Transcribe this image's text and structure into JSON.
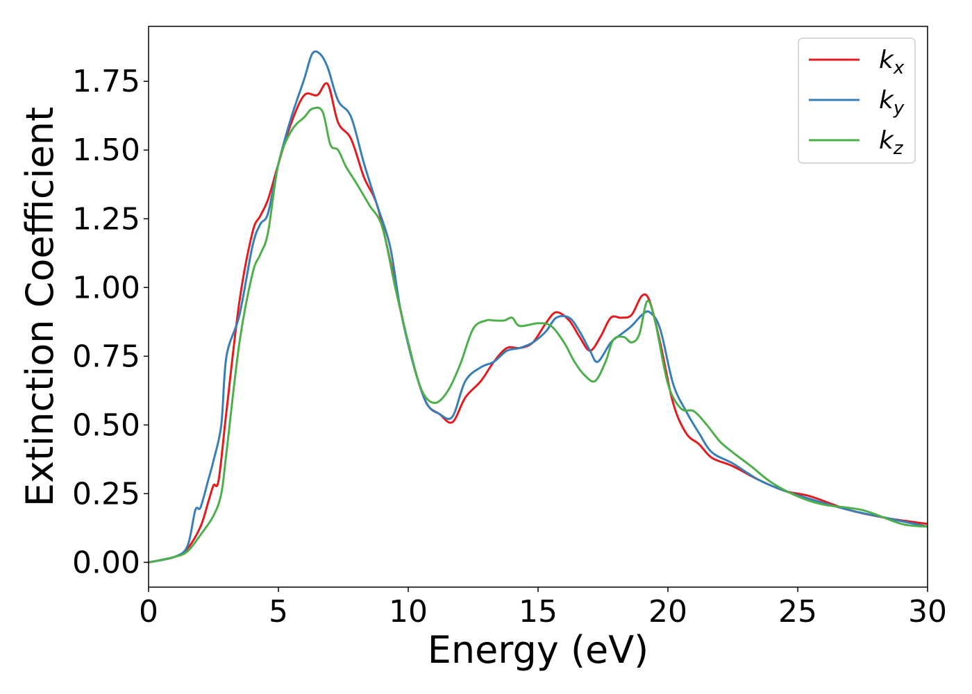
{
  "chart_data": {
    "type": "line",
    "title": "",
    "xlabel": "Energy (eV)",
    "ylabel": "Extinction Coefficient",
    "xlim": [
      0,
      30
    ],
    "ylim": [
      -0.09,
      1.95
    ],
    "xticks": [
      0,
      5,
      10,
      15,
      20,
      25,
      30
    ],
    "xtick_labels": [
      "0",
      "5",
      "10",
      "15",
      "20",
      "25",
      "30"
    ],
    "yticks": [
      0.0,
      0.25,
      0.5,
      0.75,
      1.0,
      1.25,
      1.5,
      1.75
    ],
    "ytick_labels": [
      "0.00",
      "0.25",
      "0.50",
      "0.75",
      "1.00",
      "1.25",
      "1.50",
      "1.75"
    ],
    "grid": false,
    "legend_position": "top-right",
    "series": [
      {
        "name": "k_x",
        "label_main": "k",
        "label_sub": "x",
        "color": "#e41a1c",
        "x": [
          0,
          1,
          1.5,
          2,
          2.3,
          2.5,
          2.7,
          3.0,
          3.5,
          4.0,
          4.3,
          4.6,
          5.0,
          5.5,
          6.0,
          6.5,
          6.9,
          7.3,
          7.8,
          8.3,
          8.8,
          9.3,
          9.7,
          10.2,
          10.7,
          11.2,
          11.7,
          12.2,
          12.8,
          13.3,
          13.8,
          14.3,
          14.8,
          15.3,
          15.7,
          16.2,
          16.6,
          17.0,
          17.4,
          17.8,
          18.2,
          18.6,
          19.0,
          19.3,
          19.7,
          20.2,
          20.7,
          21.2,
          21.7,
          22.5,
          23.5,
          24.5,
          25.5,
          27,
          28.5,
          30
        ],
        "y": [
          0,
          0.02,
          0.05,
          0.13,
          0.22,
          0.28,
          0.3,
          0.55,
          0.95,
          1.2,
          1.26,
          1.32,
          1.45,
          1.6,
          1.7,
          1.7,
          1.74,
          1.6,
          1.54,
          1.4,
          1.3,
          1.1,
          0.92,
          0.72,
          0.58,
          0.54,
          0.51,
          0.6,
          0.66,
          0.73,
          0.78,
          0.78,
          0.8,
          0.87,
          0.91,
          0.88,
          0.82,
          0.77,
          0.82,
          0.89,
          0.89,
          0.9,
          0.97,
          0.95,
          0.8,
          0.58,
          0.47,
          0.43,
          0.38,
          0.35,
          0.3,
          0.26,
          0.24,
          0.19,
          0.16,
          0.14
        ]
      },
      {
        "name": "k_y",
        "label_main": "k",
        "label_sub": "y",
        "color": "#377eb8",
        "x": [
          0,
          1,
          1.5,
          1.8,
          2.0,
          2.3,
          2.5,
          2.8,
          3.0,
          3.5,
          4.0,
          4.3,
          4.6,
          5.0,
          5.5,
          6.0,
          6.3,
          6.6,
          6.9,
          7.3,
          7.8,
          8.3,
          8.8,
          9.3,
          9.7,
          10.2,
          10.7,
          11.2,
          11.7,
          12.2,
          12.8,
          13.3,
          13.8,
          14.3,
          14.8,
          15.3,
          15.7,
          16.2,
          16.6,
          17.0,
          17.3,
          17.8,
          18.2,
          18.6,
          19.0,
          19.3,
          19.7,
          20.2,
          20.7,
          21.2,
          21.7,
          22.5,
          23.5,
          24.5,
          25.5,
          27,
          28.5,
          30
        ],
        "y": [
          0,
          0.02,
          0.06,
          0.19,
          0.2,
          0.3,
          0.37,
          0.5,
          0.75,
          0.9,
          1.15,
          1.23,
          1.27,
          1.45,
          1.62,
          1.76,
          1.85,
          1.85,
          1.8,
          1.68,
          1.62,
          1.45,
          1.3,
          1.15,
          0.92,
          0.72,
          0.58,
          0.54,
          0.53,
          0.66,
          0.71,
          0.73,
          0.77,
          0.78,
          0.8,
          0.84,
          0.89,
          0.89,
          0.84,
          0.77,
          0.73,
          0.8,
          0.83,
          0.86,
          0.9,
          0.91,
          0.85,
          0.65,
          0.55,
          0.47,
          0.4,
          0.36,
          0.3,
          0.26,
          0.23,
          0.19,
          0.16,
          0.13
        ]
      },
      {
        "name": "k_z",
        "label_main": "k",
        "label_sub": "z",
        "color": "#4daf4a",
        "x": [
          0,
          1,
          1.5,
          2.0,
          2.5,
          2.8,
          3.0,
          3.5,
          4.0,
          4.3,
          4.6,
          5.0,
          5.5,
          6.0,
          6.3,
          6.7,
          7.0,
          7.3,
          7.6,
          8.0,
          8.5,
          9.0,
          9.5,
          10.0,
          10.5,
          11.0,
          11.5,
          12.0,
          12.5,
          13.0,
          13.3,
          13.7,
          14.0,
          14.3,
          15.0,
          15.5,
          16.0,
          16.4,
          16.8,
          17.2,
          17.6,
          17.9,
          18.3,
          18.6,
          18.9,
          19.2,
          19.5,
          20.0,
          20.5,
          21.0,
          21.5,
          22.0,
          22.5,
          23.2,
          24.0,
          25.0,
          26,
          27.5,
          29,
          30
        ],
        "y": [
          0,
          0.02,
          0.04,
          0.1,
          0.17,
          0.25,
          0.4,
          0.8,
          1.05,
          1.12,
          1.2,
          1.45,
          1.57,
          1.62,
          1.65,
          1.64,
          1.52,
          1.5,
          1.44,
          1.38,
          1.3,
          1.22,
          1.0,
          0.8,
          0.63,
          0.58,
          0.62,
          0.72,
          0.85,
          0.88,
          0.88,
          0.88,
          0.89,
          0.86,
          0.87,
          0.86,
          0.8,
          0.73,
          0.68,
          0.66,
          0.73,
          0.81,
          0.82,
          0.8,
          0.83,
          0.95,
          0.88,
          0.65,
          0.56,
          0.55,
          0.5,
          0.44,
          0.4,
          0.35,
          0.29,
          0.24,
          0.21,
          0.19,
          0.14,
          0.13
        ]
      }
    ]
  }
}
